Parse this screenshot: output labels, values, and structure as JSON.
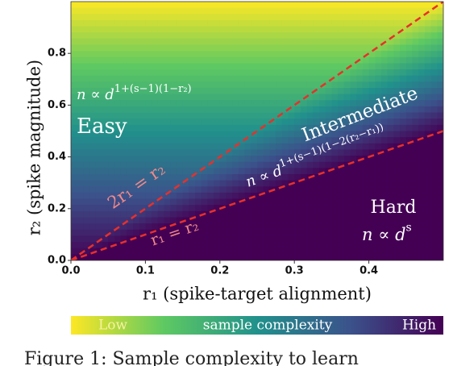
{
  "chart_data": {
    "type": "heatmap",
    "x_label": "r₁ (spike-target alignment)",
    "y_label": "r₂ (spike magnitude)",
    "xlim": [
      0,
      0.5
    ],
    "ylim": [
      0,
      1.0
    ],
    "xticks": [
      {
        "value": 0,
        "label": "0.0"
      },
      0.1,
      0.2,
      0.3,
      0.4
    ],
    "yticks": [
      {
        "value": 0,
        "label": "0.0"
      },
      0.2,
      0.4,
      0.6,
      0.8
    ],
    "series": [
      {
        "name": "2r₁ = r₂",
        "color": "#e8302a",
        "x": [
          0,
          0.5
        ],
        "values": [
          0,
          1.0
        ]
      },
      {
        "name": "r₁ = r₂",
        "color": "#e8302a",
        "x": [
          0,
          0.5
        ],
        "values": [
          0,
          0.5
        ]
      }
    ],
    "annotations": {
      "easy": "Easy",
      "easy_formula": {
        "base": "n ∝ d",
        "exponent": "1+(s−1)(1−r₂)"
      },
      "intermediate": "Intermediate",
      "intermediate_formula": {
        "base": "n ∝ d",
        "exponent": "1+(s−1)(1−2(r₂−r₁))"
      },
      "hard": "Hard",
      "hard_formula": {
        "base": "n ∝ d",
        "exponent": "s"
      }
    },
    "colorbar": {
      "label": "sample complexity",
      "low": "Low",
      "high": "High"
    },
    "caption": "Figure 1: Sample complexity to learn"
  }
}
